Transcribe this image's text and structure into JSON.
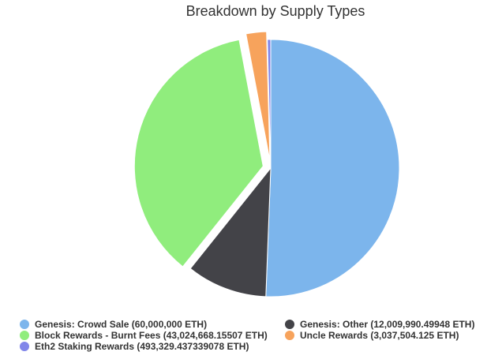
{
  "chart_data": {
    "type": "pie",
    "title": "Breakdown by Supply Types",
    "categories": [
      "Genesis: Crowd Sale",
      "Genesis: Other",
      "Block Rewards - Burnt Fees",
      "Uncle Rewards",
      "Eth2 Staking Rewards"
    ],
    "values": [
      60000000,
      12009990.49948,
      43024668.15507,
      3037504.125,
      493329.437339078
    ],
    "colors": [
      "#7cb5ec",
      "#434348",
      "#90ed7d",
      "#f7a35c",
      "#8085e9"
    ],
    "sliced": [
      false,
      false,
      true,
      true,
      false
    ],
    "legend_placement": "bottom",
    "legend": [
      "Genesis: Crowd Sale (60,000,000 ETH)",
      "Genesis: Other (12,009,990.49948 ETH)",
      "Block Rewards - Burnt Fees (43,024,668.15507 ETH)",
      "Uncle Rewards (3,037,504.125 ETH)",
      "Eth2 Staking Rewards (493,329.437339078 ETH)"
    ]
  }
}
